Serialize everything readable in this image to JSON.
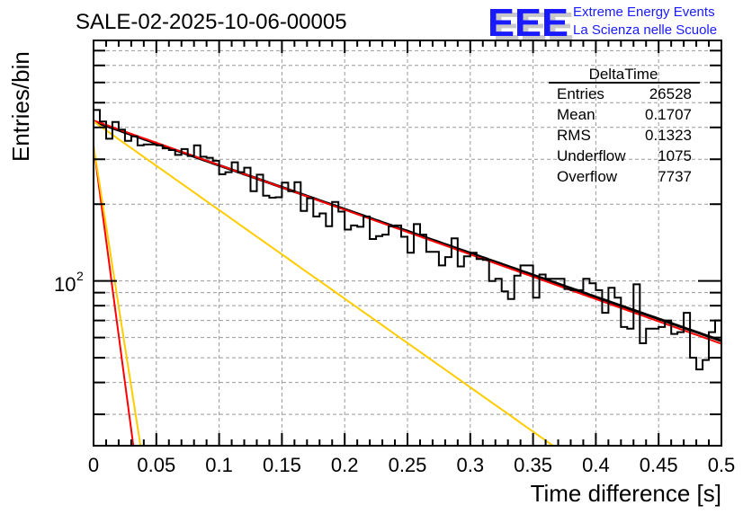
{
  "chart_data": {
    "type": "histogram",
    "title": "SALE-02-2025-10-06-00005",
    "xlabel": "Time difference [s]",
    "ylabel": "Entries/bin",
    "xlim": [
      0,
      0.5
    ],
    "ylim": [
      22.6,
      877
    ],
    "yscale": "log",
    "grid": true,
    "x_ticks": [
      "0",
      "0.05",
      "0.1",
      "0.15",
      "0.2",
      "0.25",
      "0.3",
      "0.35",
      "0.4",
      "0.45",
      "0.5"
    ],
    "x_tick_values": [
      0,
      0.05,
      0.1,
      0.15,
      0.2,
      0.25,
      0.3,
      0.35,
      0.4,
      0.45,
      0.5
    ],
    "y_major_label": {
      "base": "10",
      "exponent": "2",
      "value": 100
    },
    "y_minor_ticks": [
      30,
      40,
      50,
      60,
      70,
      80,
      90,
      200,
      300,
      400,
      500,
      600,
      700,
      800
    ],
    "bin_width": 0.005,
    "bin_start": 0,
    "values": [
      468,
      422,
      361,
      420,
      392,
      354,
      369,
      340,
      343,
      343,
      340,
      331,
      326,
      312,
      329,
      309,
      340,
      307,
      304,
      296,
      262,
      267,
      292,
      267,
      278,
      225,
      261,
      216,
      212,
      213,
      243,
      225,
      244,
      188,
      211,
      179,
      184,
      164,
      204,
      187,
      159,
      165,
      163,
      179,
      146,
      150,
      152,
      164,
      165,
      149,
      129,
      167,
      152,
      130,
      130,
      115,
      124,
      147,
      114,
      125,
      129,
      122,
      121,
      100,
      102,
      91,
      85,
      105,
      115,
      115,
      86,
      106,
      102,
      102,
      102,
      93,
      92,
      92,
      102,
      98,
      92,
      75,
      94,
      86,
      66,
      65,
      97,
      57,
      65,
      65,
      66,
      70,
      62,
      63,
      75,
      50,
      45,
      49,
      63,
      70
    ],
    "fits": [
      {
        "name": "total-fit-black",
        "color": "#000000",
        "amplitude": 422,
        "tau": 0.2525
      },
      {
        "name": "long-component-red",
        "color": "#ff0000",
        "amplitude": 426,
        "tau": 0.248
      },
      {
        "name": "mid-component-yellow",
        "color": "#ffcc00",
        "amplitude": 422,
        "tau": 0.125
      },
      {
        "name": "short-component-red",
        "color": "#ff0000",
        "amplitude": 339,
        "tau": 0.0117
      },
      {
        "name": "short-component-yellow",
        "color": "#ffcc00",
        "amplitude": 339,
        "tau": 0.0138
      }
    ],
    "stats_box": {
      "title": "DeltaTime",
      "rows": [
        {
          "label": "Entries",
          "value": "26528"
        },
        {
          "label": "Mean",
          "value": "0.1707"
        },
        {
          "label": "RMS",
          "value": "0.1323"
        },
        {
          "label": "Underflow",
          "value": "1075"
        },
        {
          "label": "Overflow",
          "value": "7737"
        }
      ],
      "placement": "top-right"
    }
  },
  "logo": {
    "letters": "EEE",
    "line1": "Extreme Energy Events",
    "line2": "La Scienza nelle Scuole",
    "color": "#1a1aff",
    "shadow_color": "#c8c8c8"
  }
}
